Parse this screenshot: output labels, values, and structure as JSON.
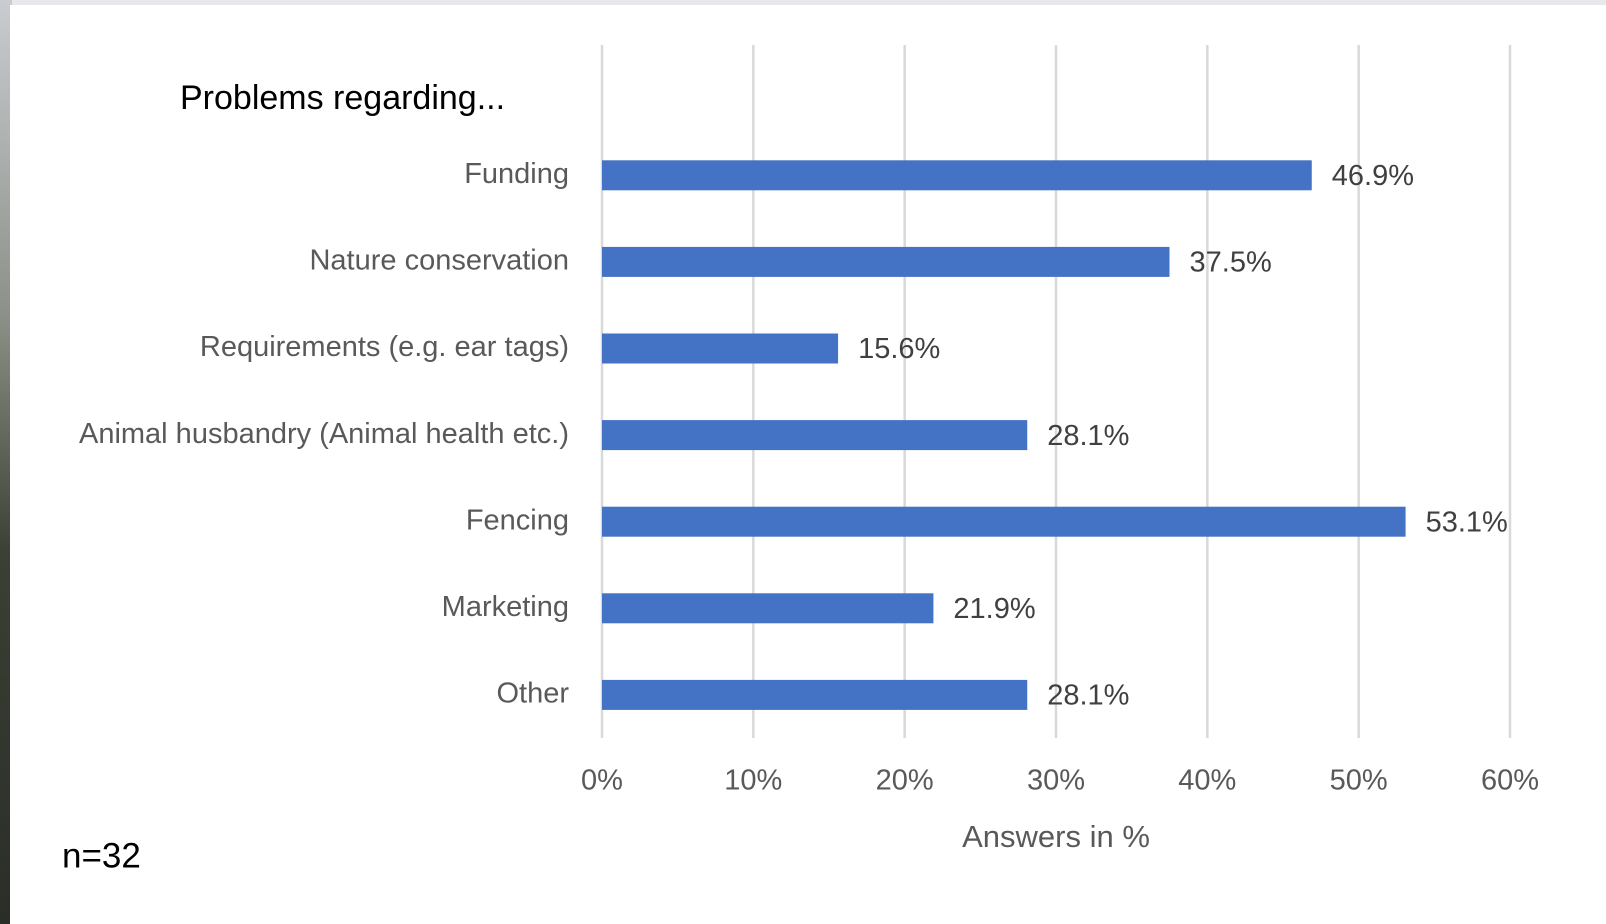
{
  "chart_data": {
    "type": "bar",
    "orientation": "horizontal",
    "title": "Problems regarding...",
    "annotation": "n=32",
    "x_label": "Answers in %",
    "categories": [
      "Funding",
      "Nature conservation",
      "Requirements (e.g. ear tags)",
      "Animal husbandry (Animal health etc.)",
      "Fencing",
      "Marketing",
      "Other"
    ],
    "values": [
      46.9,
      37.5,
      15.6,
      28.1,
      53.1,
      21.9,
      28.1
    ],
    "value_labels": [
      "46.9%",
      "37.5%",
      "15.6%",
      "28.1%",
      "53.1%",
      "21.9%",
      "28.1%"
    ],
    "color": "#4472c4",
    "xlim": [
      0,
      60
    ],
    "xticks": [
      {
        "value": 0,
        "label": "0%"
      },
      {
        "value": 10,
        "label": "10%"
      },
      {
        "value": 20,
        "label": "20%"
      },
      {
        "value": 30,
        "label": "30%"
      },
      {
        "value": 40,
        "label": "40%"
      },
      {
        "value": 50,
        "label": "50%"
      },
      {
        "value": 60,
        "label": "60%"
      }
    ],
    "grid": true
  }
}
